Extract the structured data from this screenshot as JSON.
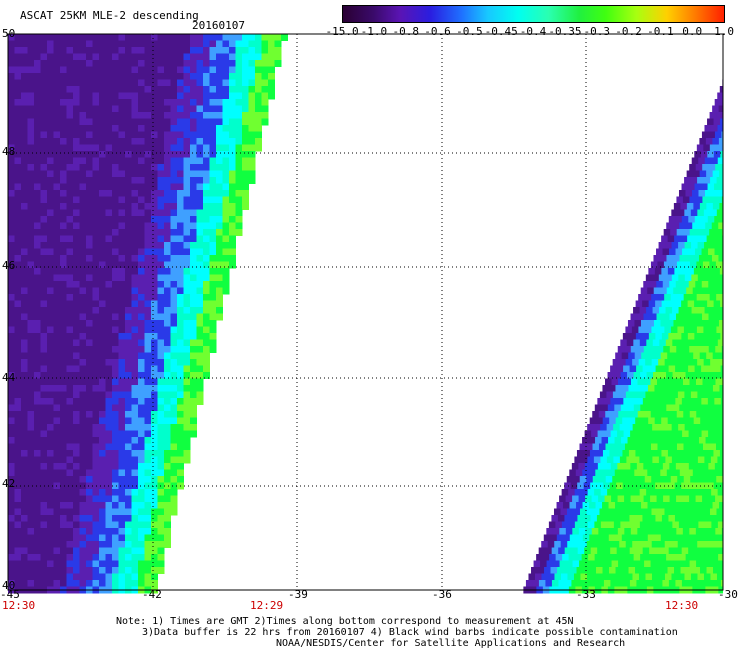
{
  "header": {
    "title": "ASCAT 25KM MLE-2 descending",
    "date": "20160107"
  },
  "colorbar": {
    "labels": [
      "-15.0",
      "-1.0",
      "-0.8",
      "-0.6",
      "-0.5",
      "-0.45",
      "-0.4",
      "-0.35",
      "-0.3",
      "-0.2",
      "-0.1",
      "0.0",
      "1.0"
    ],
    "colors": [
      "#2a0033",
      "#3a0a6a",
      "#5a14b4",
      "#2a1ee0",
      "#1f6fff",
      "#18c8ff",
      "#00fff0",
      "#2affb0",
      "#20f040",
      "#40ff10",
      "#a8ff10",
      "#ffd000",
      "#ff8000",
      "#ff2000"
    ]
  },
  "map": {
    "lon_labels": [
      "-45",
      "-42",
      "-39",
      "-36",
      "-33",
      "-30"
    ],
    "lat_top_label": "50",
    "lat_bottom_label": "40",
    "lat_mid_labels": [
      "48",
      "46",
      "44",
      "42"
    ],
    "time_labels": [
      "12:30",
      "12:29",
      "12:30"
    ],
    "grid": "dotted",
    "swath_colors": {
      "purple_dark": "#4a148a",
      "purple": "#5a1fb0",
      "blue": "#2a3ae8",
      "lightblue": "#3fa0ff",
      "cyan": "#00ffff",
      "aqua": "#00ffcc",
      "green": "#10ff40",
      "lightgreen": "#70ff30"
    }
  },
  "footer": {
    "line1": "Note: 1) Times are GMT 2)Times along bottom correspond to measurement at 45N",
    "line2": "3)Data buffer is 22 hrs from 20160107 4) Black wind barbs indicate possible contamination",
    "line3": "NOAA/NESDIS/Center for Satellite Applications and Research"
  }
}
